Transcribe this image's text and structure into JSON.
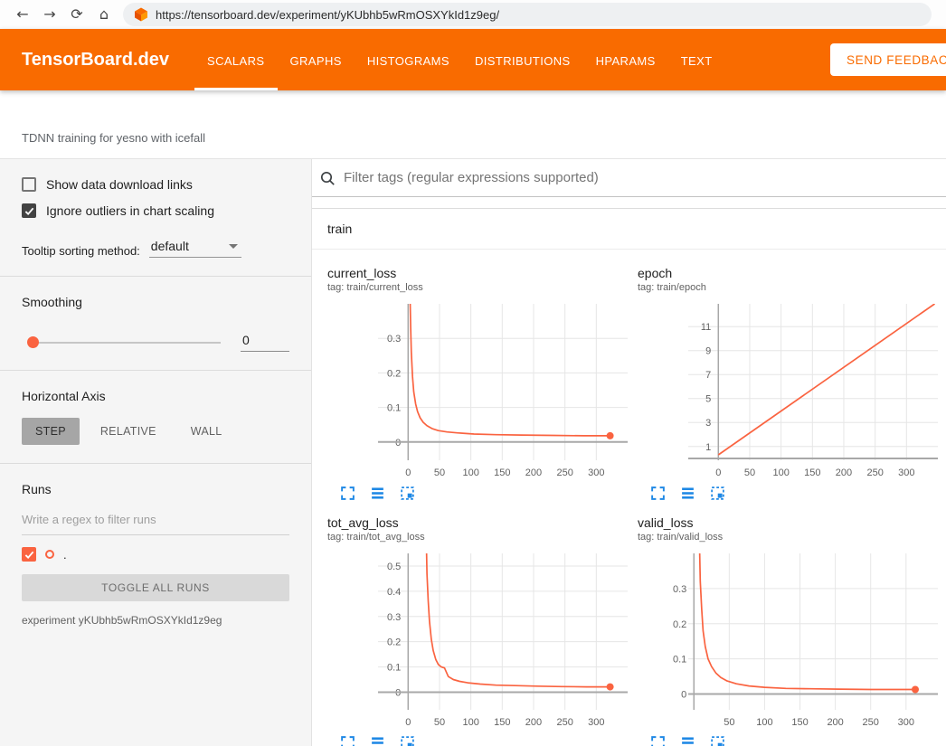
{
  "browser": {
    "url": "https://tensorboard.dev/experiment/yKUbhb5wRmOSXYkId1z9eg/",
    "icons": {
      "back": "←",
      "forward": "→",
      "reload": "⟳",
      "home": "⌂"
    }
  },
  "header": {
    "brand": "TensorBoard.dev",
    "tabs": [
      {
        "label": "SCALARS",
        "active": true
      },
      {
        "label": "GRAPHS",
        "active": false
      },
      {
        "label": "HISTOGRAMS",
        "active": false
      },
      {
        "label": "DISTRIBUTIONS",
        "active": false
      },
      {
        "label": "HPARAMS",
        "active": false
      },
      {
        "label": "TEXT",
        "active": false
      }
    ],
    "feedback_button": "SEND FEEDBACK"
  },
  "toolbar": {
    "experiment_title": "TDNN training for yesno with icefall"
  },
  "sidebar": {
    "checkboxes": [
      {
        "label": "Show data download links",
        "checked": false
      },
      {
        "label": "Ignore outliers in chart scaling",
        "checked": true
      }
    ],
    "tooltip_sorting_label": "Tooltip sorting method:",
    "tooltip_sorting_value": "default",
    "smoothing_label": "Smoothing",
    "smoothing_value": "0",
    "horizontal_axis_label": "Horizontal Axis",
    "axis_options": [
      {
        "label": "STEP",
        "selected": true
      },
      {
        "label": "RELATIVE",
        "selected": false
      },
      {
        "label": "WALL",
        "selected": false
      }
    ],
    "runs_label": "Runs",
    "runs_filter_placeholder": "Write a regex to filter runs",
    "run_item": {
      "label": ".",
      "checked": true
    },
    "toggle_all_label": "TOGGLE ALL RUNS",
    "experiment_caption": "experiment yKUbhb5wRmOSXYkId1z9eg"
  },
  "main": {
    "filter_placeholder": "Filter tags (regular expressions supported)",
    "section_label": "train"
  },
  "colors": {
    "header_orange": "#f96b00",
    "series_orange": "#fa6340",
    "icon_blue": "#1e88e5",
    "grid": "#e6e6e6",
    "axis": "#a8a8a8"
  },
  "chart_data": [
    {
      "type": "line",
      "title": "current_loss",
      "tag": "tag: train/current_loss",
      "xlabel": "step",
      "xlim": [
        -48,
        350
      ],
      "ylim": [
        -0.053,
        0.4
      ],
      "xticks": [
        0,
        50,
        100,
        150,
        200,
        250,
        300
      ],
      "yticks": [
        0,
        0.1,
        0.2,
        0.3
      ],
      "x": [
        2,
        3,
        4,
        5,
        7,
        9,
        12,
        15,
        19,
        24,
        30,
        38,
        48,
        62,
        80,
        105,
        140,
        180,
        230,
        280,
        322
      ],
      "y": [
        0.55,
        0.42,
        0.33,
        0.26,
        0.19,
        0.145,
        0.11,
        0.088,
        0.07,
        0.057,
        0.047,
        0.039,
        0.033,
        0.029,
        0.026,
        0.023,
        0.021,
        0.02,
        0.019,
        0.018,
        0.018
      ],
      "end_dot": true
    },
    {
      "type": "line",
      "title": "epoch",
      "tag": "tag: train/epoch",
      "xlabel": "step",
      "xlim": [
        -48,
        350
      ],
      "ylim": [
        -0.15,
        12.9
      ],
      "xticks": [
        0,
        50,
        100,
        150,
        200,
        250,
        300
      ],
      "yticks": [
        1,
        3,
        5,
        7,
        9,
        11
      ],
      "x": [
        0,
        345
      ],
      "y": [
        0.3,
        12.9
      ],
      "end_dot": false
    },
    {
      "type": "line",
      "title": "tot_avg_loss",
      "tag": "tag: train/tot_avg_loss",
      "xlabel": "step",
      "xlim": [
        -48,
        350
      ],
      "ylim": [
        -0.07,
        0.55
      ],
      "xticks": [
        0,
        50,
        100,
        150,
        200,
        250,
        300
      ],
      "yticks": [
        0,
        0.1,
        0.2,
        0.3,
        0.4,
        0.5
      ],
      "x": [
        29,
        30,
        32,
        34,
        37,
        40,
        44,
        48,
        53,
        58,
        64,
        72,
        82,
        95,
        115,
        140,
        170,
        205,
        245,
        285,
        322
      ],
      "y": [
        0.6,
        0.47,
        0.36,
        0.28,
        0.21,
        0.165,
        0.13,
        0.11,
        0.1,
        0.096,
        0.062,
        0.05,
        0.043,
        0.037,
        0.032,
        0.028,
        0.026,
        0.024,
        0.022,
        0.021,
        0.021
      ],
      "end_dot": true
    },
    {
      "type": "line",
      "title": "valid_loss",
      "tag": "tag: train/valid_loss",
      "xlabel": "step",
      "xlim": [
        -8,
        345
      ],
      "ylim": [
        -0.045,
        0.4
      ],
      "xticks": [
        50,
        100,
        150,
        200,
        250,
        300
      ],
      "yticks": [
        0,
        0.1,
        0.2,
        0.3
      ],
      "x": [
        7,
        8,
        9,
        11,
        13,
        16,
        20,
        25,
        31,
        38,
        47,
        60,
        78,
        100,
        130,
        165,
        205,
        250,
        295,
        313
      ],
      "y": [
        0.55,
        0.42,
        0.32,
        0.24,
        0.18,
        0.135,
        0.1,
        0.078,
        0.06,
        0.047,
        0.037,
        0.029,
        0.023,
        0.019,
        0.016,
        0.015,
        0.014,
        0.013,
        0.013,
        0.013
      ],
      "end_dot": true
    }
  ]
}
